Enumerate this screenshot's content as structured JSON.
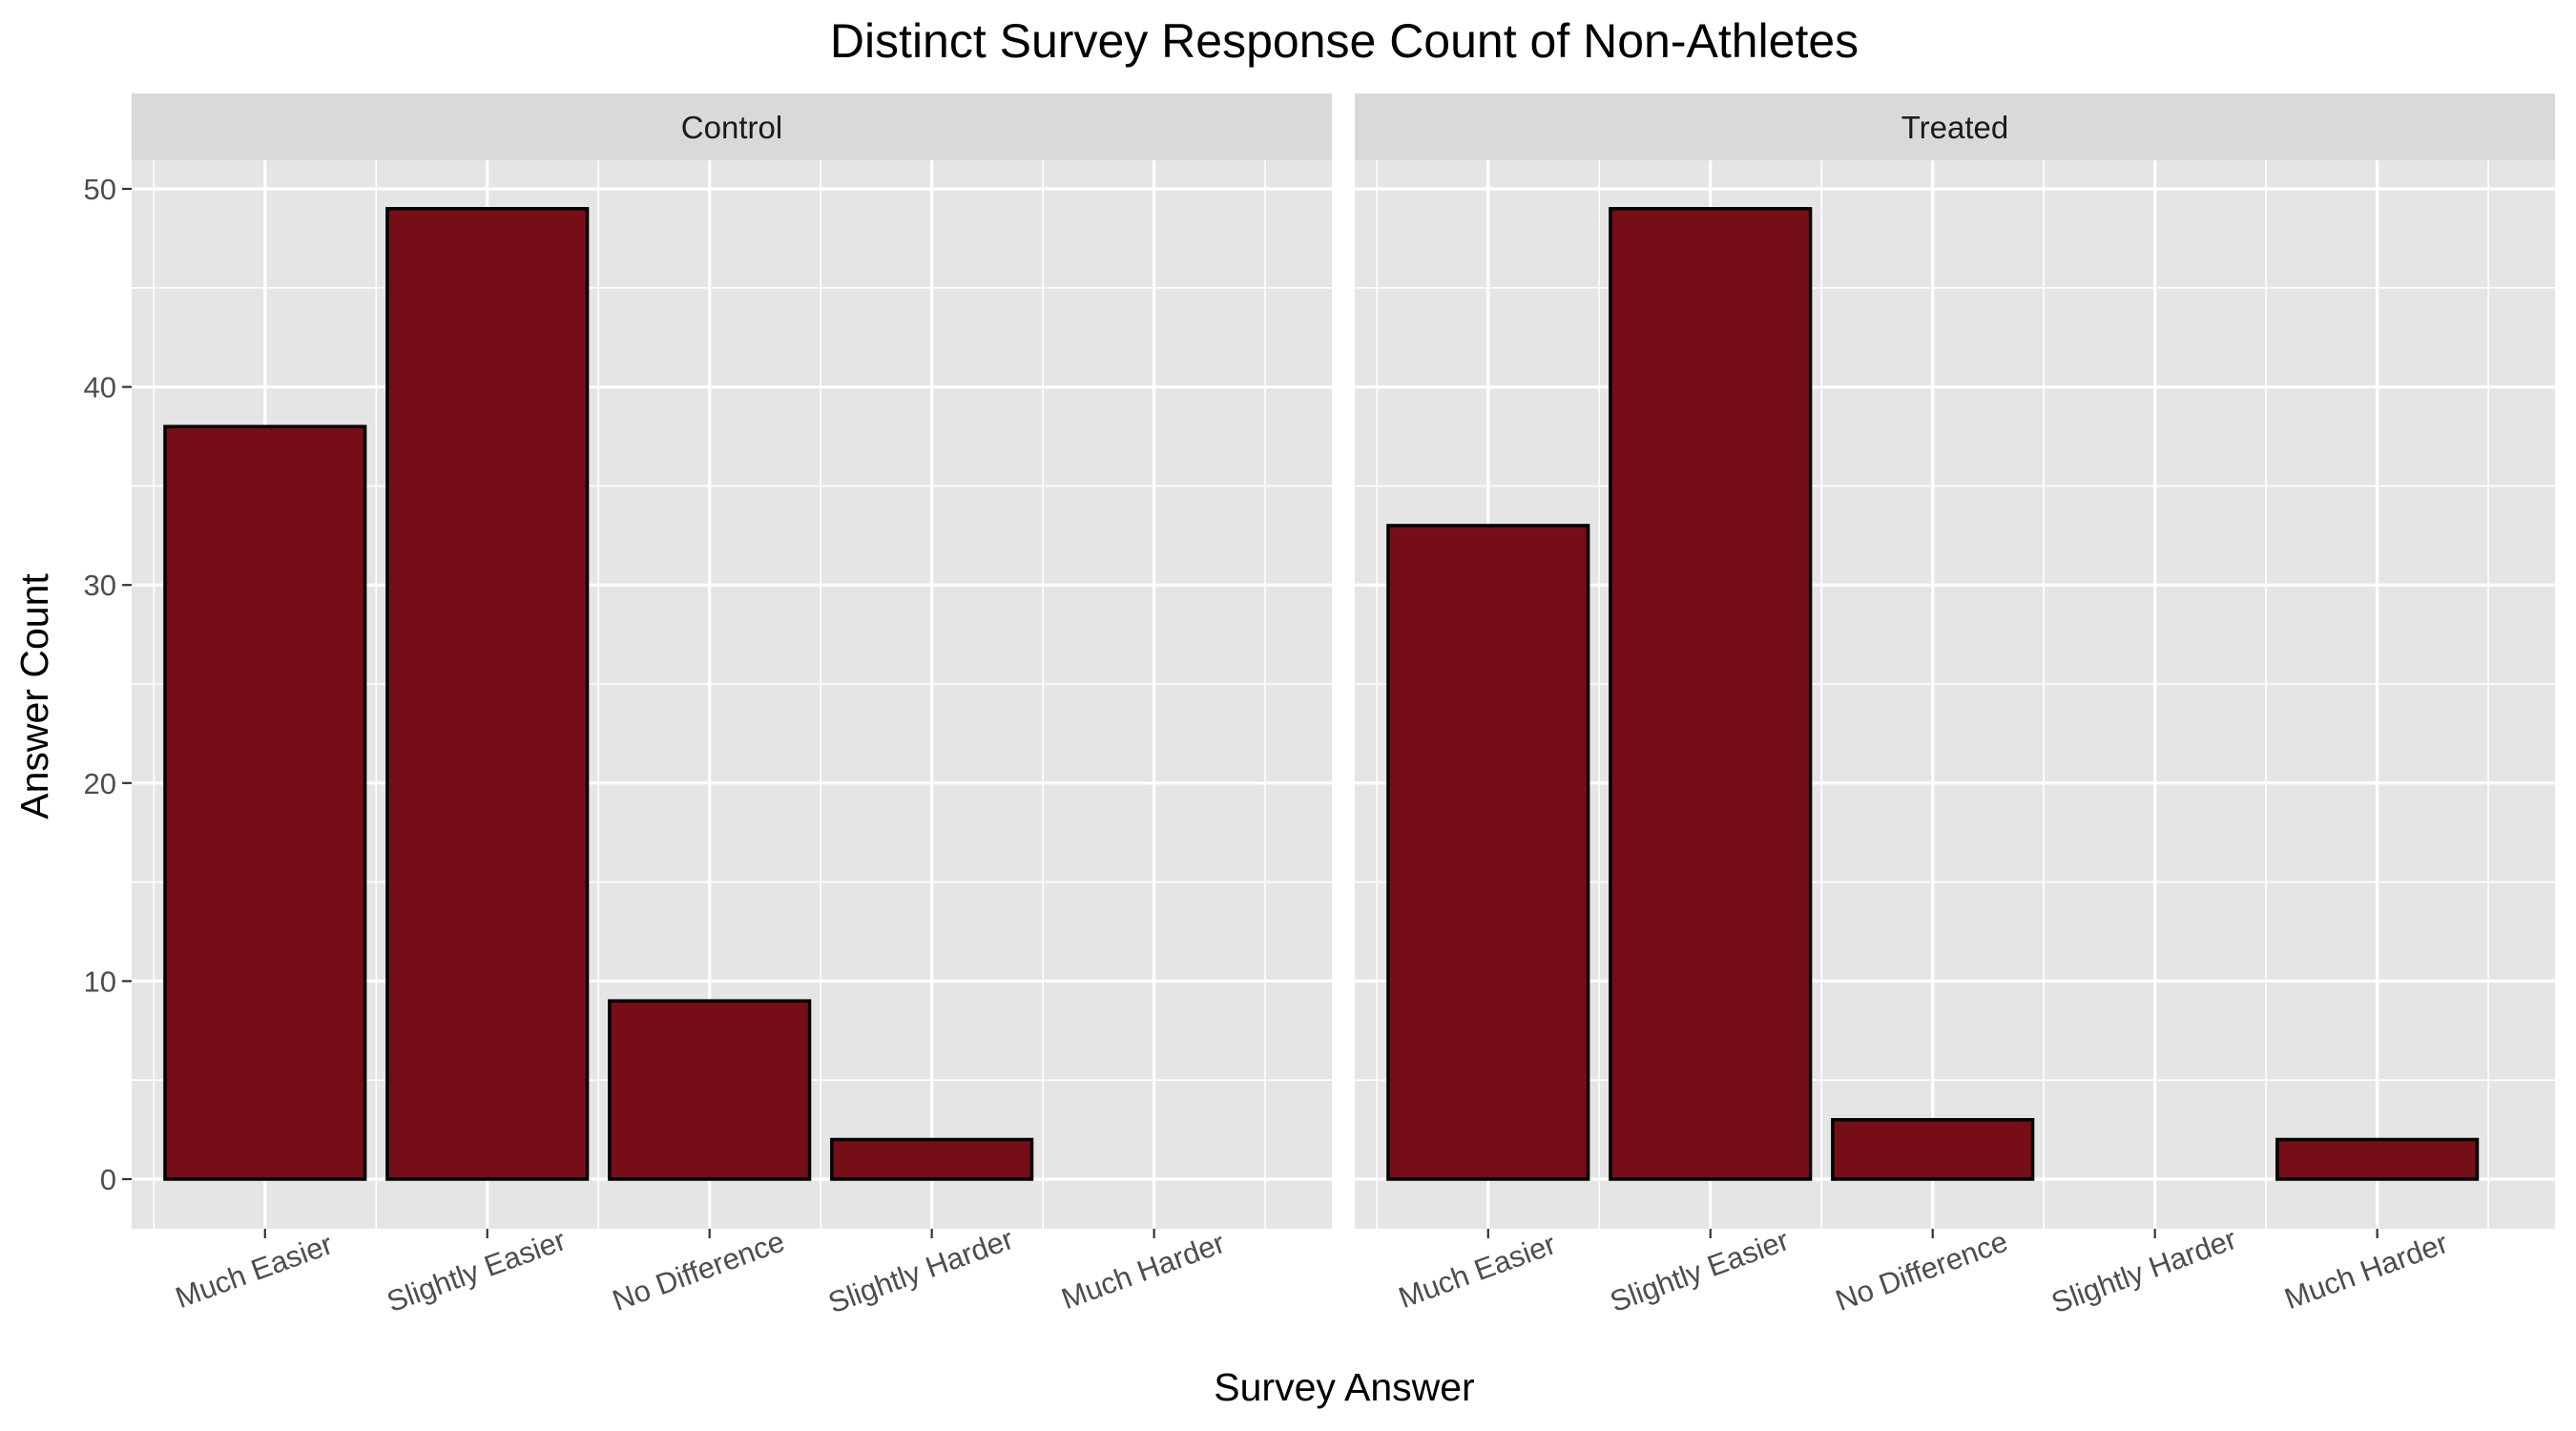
{
  "chart_data": {
    "type": "bar",
    "title": "Distinct Survey Response Count of Non-Athletes",
    "xlabel": "Survey Answer",
    "ylabel": "Answer Count",
    "ylim": [
      0,
      52
    ],
    "yticks": [
      "0",
      "10",
      "20",
      "30",
      "40",
      "50"
    ],
    "categories": [
      "Much Easier",
      "Slightly Easier",
      "No Difference",
      "Slightly Harder",
      "Much Harder"
    ],
    "bar_fill": "#750e17",
    "bar_stroke": "#000000",
    "panel_background": "#e5e5e5",
    "strip_background": "#d9d9d9",
    "grid": true,
    "facets": [
      {
        "label": "Control",
        "values": [
          38,
          49,
          9,
          2,
          0
        ]
      },
      {
        "label": "Treated",
        "values": [
          33,
          49,
          3,
          0,
          2
        ]
      }
    ]
  }
}
